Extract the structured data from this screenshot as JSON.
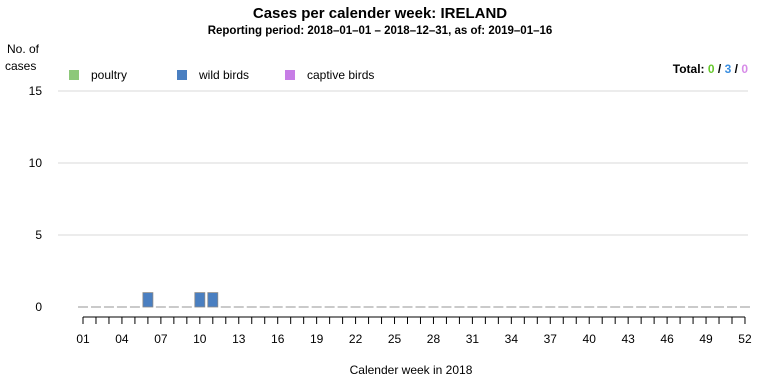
{
  "chart_data": {
    "type": "bar",
    "title": "Cases per calender week: IRELAND",
    "subtitle": "Reporting period: 2018–01–01 – 2018–12–31, as of: 2019–01–16",
    "ylabel_line1": "No. of",
    "ylabel_line2": "cases",
    "xlabel": "Calender week in 2018",
    "ylim": [
      0,
      15
    ],
    "yticks": [
      0,
      5,
      10,
      15
    ],
    "weeks": [
      "01",
      "02",
      "03",
      "04",
      "05",
      "06",
      "07",
      "08",
      "09",
      "10",
      "11",
      "12",
      "13",
      "14",
      "15",
      "16",
      "17",
      "18",
      "19",
      "20",
      "21",
      "22",
      "23",
      "24",
      "25",
      "26",
      "27",
      "28",
      "29",
      "30",
      "31",
      "32",
      "33",
      "34",
      "35",
      "36",
      "37",
      "38",
      "39",
      "40",
      "41",
      "42",
      "43",
      "44",
      "45",
      "46",
      "47",
      "48",
      "49",
      "50",
      "51",
      "52"
    ],
    "xtick_labels": [
      "01",
      "04",
      "07",
      "10",
      "13",
      "16",
      "19",
      "22",
      "25",
      "28",
      "31",
      "34",
      "37",
      "40",
      "43",
      "46",
      "49",
      "52"
    ],
    "series": [
      {
        "name": "poultry",
        "color": "#8dc87a",
        "values": [
          0,
          0,
          0,
          0,
          0,
          0,
          0,
          0,
          0,
          0,
          0,
          0,
          0,
          0,
          0,
          0,
          0,
          0,
          0,
          0,
          0,
          0,
          0,
          0,
          0,
          0,
          0,
          0,
          0,
          0,
          0,
          0,
          0,
          0,
          0,
          0,
          0,
          0,
          0,
          0,
          0,
          0,
          0,
          0,
          0,
          0,
          0,
          0,
          0,
          0,
          0,
          0
        ]
      },
      {
        "name": "wild birds",
        "color": "#4a7fc1",
        "values": [
          0,
          0,
          0,
          0,
          0,
          1,
          0,
          0,
          0,
          1,
          1,
          0,
          0,
          0,
          0,
          0,
          0,
          0,
          0,
          0,
          0,
          0,
          0,
          0,
          0,
          0,
          0,
          0,
          0,
          0,
          0,
          0,
          0,
          0,
          0,
          0,
          0,
          0,
          0,
          0,
          0,
          0,
          0,
          0,
          0,
          0,
          0,
          0,
          0,
          0,
          0,
          0
        ]
      },
      {
        "name": "captive birds",
        "color": "#c77de6",
        "values": [
          0,
          0,
          0,
          0,
          0,
          0,
          0,
          0,
          0,
          0,
          0,
          0,
          0,
          0,
          0,
          0,
          0,
          0,
          0,
          0,
          0,
          0,
          0,
          0,
          0,
          0,
          0,
          0,
          0,
          0,
          0,
          0,
          0,
          0,
          0,
          0,
          0,
          0,
          0,
          0,
          0,
          0,
          0,
          0,
          0,
          0,
          0,
          0,
          0,
          0,
          0,
          0
        ]
      }
    ],
    "totals": {
      "label": "Total:",
      "poultry": "0",
      "wild_birds": "3",
      "captive_birds": "0",
      "separator": " / ",
      "colors": {
        "poultry": "#66c82c",
        "wild_birds": "#3a8ee0",
        "captive_birds": "#d78be8"
      }
    },
    "legend_placement": "top-left",
    "grid": true
  }
}
